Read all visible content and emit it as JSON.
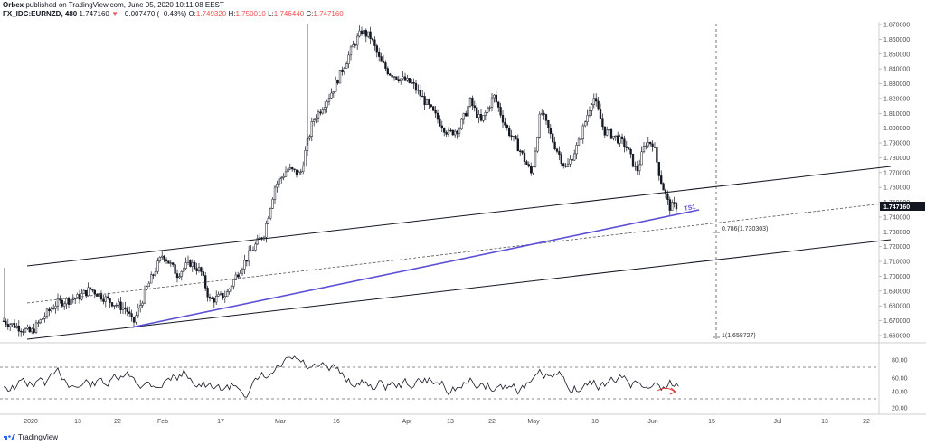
{
  "header": {
    "publisher": "Orbex",
    "published_text": "published on TradingView.com, June 05, 2020 10:11:08 EEST",
    "symbol": "FX_IDC:EURNZD, 480",
    "last": "1.747160",
    "change": "▼",
    "change_text": "−0.007470 (−0.43%)",
    "o_label": "O:",
    "o_value": "1.749320",
    "h_label": "H:",
    "h_value": "1.750010",
    "l_label": "L:",
    "l_value": "1.746440",
    "c_label": "C:",
    "c_value": "1.747160"
  },
  "price_axis": {
    "labels": [
      "1.870000",
      "1.860000",
      "1.850000",
      "1.840000",
      "1.830000",
      "1.820000",
      "1.810000",
      "1.800000",
      "1.790000",
      "1.780000",
      "1.770000",
      "1.760000",
      "1.750000",
      "1.740000",
      "1.730000",
      "1.720000",
      "1.710000",
      "1.700000",
      "1.690000",
      "1.680000",
      "1.670000",
      "1.660000"
    ],
    "current_price_tag": "1.747160"
  },
  "osc_axis": {
    "labels": [
      "80.00",
      "60.00",
      "40.00",
      "20.00"
    ]
  },
  "date_axis": {
    "labels": [
      "2020",
      "13",
      "22",
      "Feb",
      "17",
      "Mar",
      "16",
      "Apr",
      "13",
      "22",
      "May",
      "18",
      "Jun",
      "15",
      "Jul",
      "13",
      "22"
    ]
  },
  "annotations": {
    "fib_786": "0.786(1.730303)",
    "fib_1": "1(1.658727)",
    "ts_label": "TS1"
  },
  "footer": {
    "brand": "TradingView",
    "logo_icon": "tradingview-logo-icon"
  },
  "colors": {
    "candle": "#131722",
    "trendline": "#5b4fd6",
    "price_tag_bg": "#131722",
    "arrow": "#e53935",
    "channel": "#131722",
    "dashed": "#555555"
  },
  "chart_data": {
    "type": "candlestick",
    "symbol": "FX_IDC:EURNZD",
    "timeframe": "480",
    "price_range": [
      1.655,
      1.872
    ],
    "oscillator_levels": [
      70,
      30
    ],
    "oscillator_range": [
      15,
      95
    ],
    "approx_closes": [
      {
        "date": "2020-01-01",
        "close": 1.668
      },
      {
        "date": "2020-01-13",
        "close": 1.683
      },
      {
        "date": "2020-01-22",
        "close": 1.683
      },
      {
        "date": "2020-01-27",
        "close": 1.667
      },
      {
        "date": "2020-02-03",
        "close": 1.712
      },
      {
        "date": "2020-02-10",
        "close": 1.705
      },
      {
        "date": "2020-02-17",
        "close": 1.688
      },
      {
        "date": "2020-02-24",
        "close": 1.725
      },
      {
        "date": "2020-03-02",
        "close": 1.775
      },
      {
        "date": "2020-03-09",
        "close": 1.815
      },
      {
        "date": "2020-03-16",
        "close": 1.835
      },
      {
        "date": "2020-03-23",
        "close": 1.862
      },
      {
        "date": "2020-04-01",
        "close": 1.835
      },
      {
        "date": "2020-04-13",
        "close": 1.805
      },
      {
        "date": "2020-04-22",
        "close": 1.815
      },
      {
        "date": "2020-05-01",
        "close": 1.775
      },
      {
        "date": "2020-05-11",
        "close": 1.795
      },
      {
        "date": "2020-05-18",
        "close": 1.815
      },
      {
        "date": "2020-05-27",
        "close": 1.795
      },
      {
        "date": "2020-06-05",
        "close": 1.747
      }
    ]
  }
}
